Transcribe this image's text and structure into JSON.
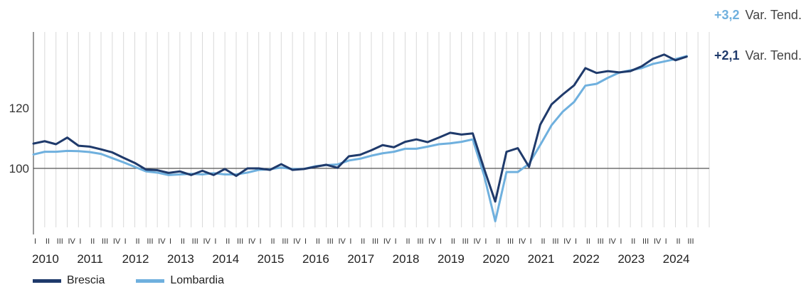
{
  "chart_data": {
    "type": "line",
    "title": "",
    "xlabel": "",
    "ylabel": "",
    "ylim": [
      80,
      145
    ],
    "yticks": [
      100,
      120
    ],
    "reference_line": 100,
    "grid": "vertical per quarter",
    "legend_position": "bottom-left",
    "years": [
      "2010",
      "2011",
      "2012",
      "2013",
      "2014",
      "2015",
      "2016",
      "2017",
      "2018",
      "2019",
      "2020",
      "2021",
      "2022",
      "2023",
      "2024"
    ],
    "quarter_labels": [
      "I",
      "II",
      "III",
      "IV"
    ],
    "series": [
      {
        "name": "Brescia",
        "color": "#1f3a6b",
        "end_value_label": "+2,1",
        "end_text": "Var. Tend.",
        "values": [
          108.2,
          109.0,
          108.0,
          110.2,
          107.5,
          107.2,
          106.3,
          105.3,
          103.5,
          101.8,
          99.6,
          99.4,
          98.5,
          99.0,
          97.8,
          99.2,
          97.8,
          99.8,
          97.5,
          100.0,
          100.0,
          99.5,
          101.4,
          99.5,
          99.8,
          100.5,
          101.2,
          100.2,
          104.0,
          104.5,
          106.0,
          107.7,
          107.0,
          108.8,
          109.6,
          108.7,
          110.2,
          111.8,
          111.2,
          111.6,
          100.0,
          89.0,
          105.5,
          106.7,
          100.5,
          114.5,
          121.2,
          124.5,
          127.5,
          133.2,
          131.6,
          132.2,
          131.8,
          132.2,
          133.8,
          136.3,
          137.7,
          135.8,
          137.0
        ]
      },
      {
        "name": "Lombardia",
        "color": "#6fb0de",
        "end_value_label": "+3,2",
        "end_text": "Var. Tend.",
        "values": [
          104.6,
          105.5,
          105.5,
          105.8,
          105.7,
          105.4,
          104.8,
          103.4,
          102.0,
          100.5,
          99.0,
          98.6,
          97.8,
          98.0,
          98.2,
          98.0,
          98.4,
          98.0,
          98.0,
          98.6,
          99.5,
          99.7,
          100.3,
          99.8,
          99.8,
          100.7,
          101.1,
          101.3,
          102.6,
          103.2,
          104.2,
          105.0,
          105.5,
          106.5,
          106.5,
          107.2,
          108.0,
          108.3,
          108.8,
          109.6,
          97.8,
          82.5,
          98.8,
          98.8,
          101.5,
          107.8,
          114.3,
          118.8,
          122.0,
          127.4,
          128.0,
          130.0,
          131.7,
          132.5,
          133.2,
          134.6,
          135.4,
          136.2,
          137.2
        ]
      }
    ]
  }
}
